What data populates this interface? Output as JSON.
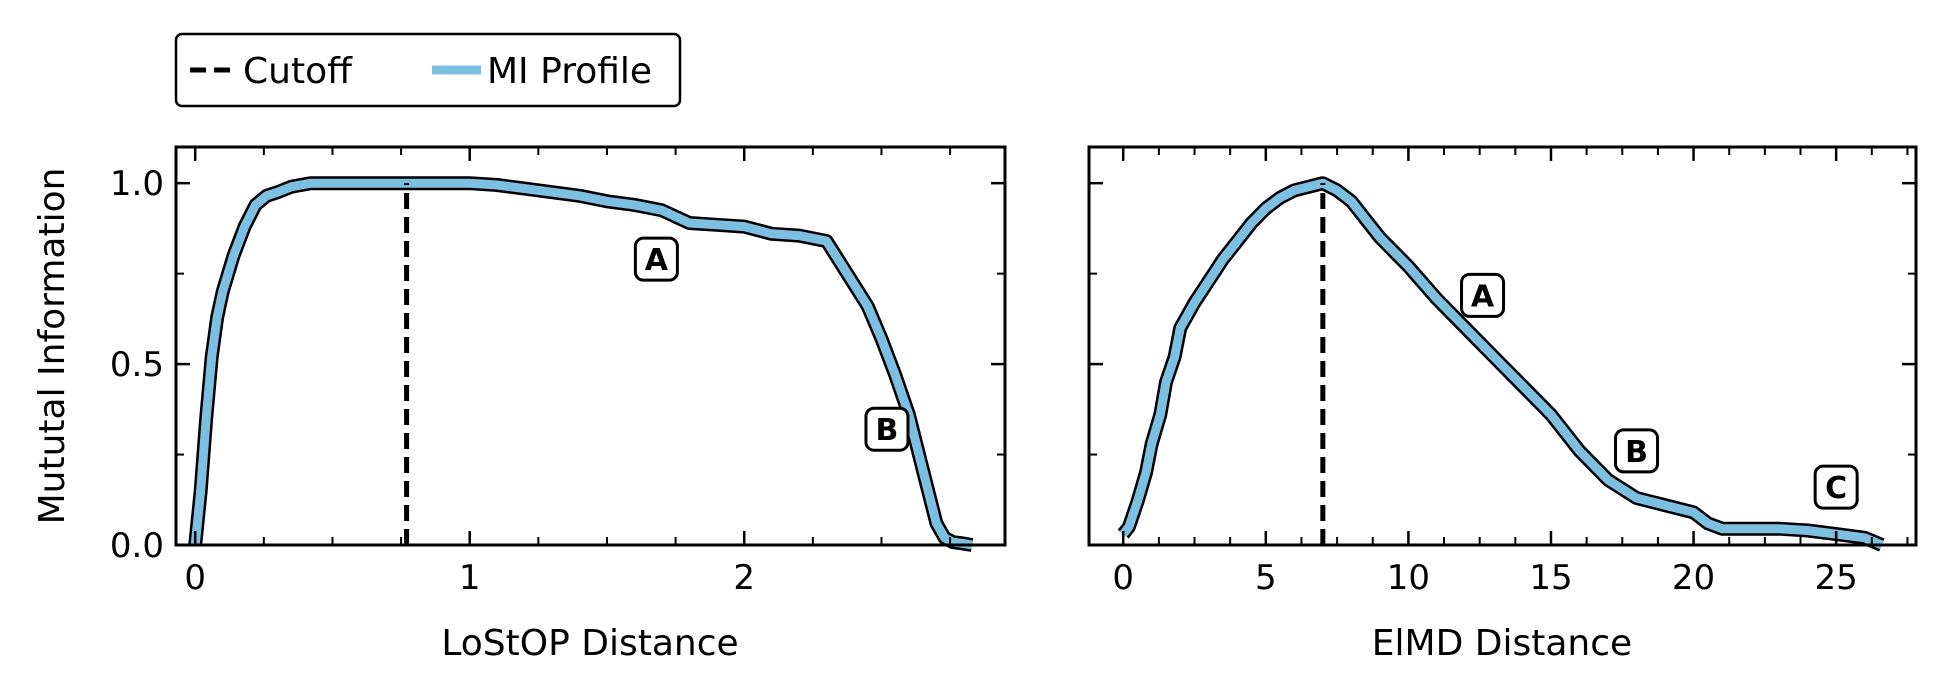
{
  "legend": {
    "entries": [
      {
        "label": "Cutoff",
        "style": "dashed",
        "color": "#000000"
      },
      {
        "label": "MI Profile",
        "style": "solid",
        "color": "#7dbfe0"
      }
    ]
  },
  "colors": {
    "profile": "#7dbfe0",
    "outline": "#000000",
    "cutoff": "#000000"
  },
  "chart_data": [
    {
      "type": "line",
      "xlabel": "LoStOP Distance",
      "ylabel": "Mututal Information",
      "xlim": [
        -0.07,
        2.95
      ],
      "ylim": [
        0,
        1.1
      ],
      "xticks": [
        0,
        1,
        2
      ],
      "yticks": [
        0.0,
        0.5,
        1.0
      ],
      "ytick_labels": [
        "0.0",
        "0.5",
        "1.0"
      ],
      "grid": false,
      "cutoff_x": 0.77,
      "series": [
        {
          "name": "MI Profile",
          "x": [
            0,
            0.02,
            0.04,
            0.06,
            0.08,
            0.1,
            0.14,
            0.18,
            0.22,
            0.26,
            0.3,
            0.35,
            0.42,
            0.5,
            0.6,
            0.7,
            0.77,
            0.9,
            1.0,
            1.1,
            1.2,
            1.3,
            1.4,
            1.5,
            1.6,
            1.7,
            1.8,
            1.9,
            2.0,
            2.1,
            2.2,
            2.3,
            2.35,
            2.4,
            2.45,
            2.5,
            2.55,
            2.6,
            2.65,
            2.7,
            2.73,
            2.76,
            2.8,
            2.83
          ],
          "y": [
            0.0,
            0.15,
            0.35,
            0.52,
            0.63,
            0.7,
            0.8,
            0.88,
            0.94,
            0.965,
            0.975,
            0.99,
            1.0,
            1.0,
            1.0,
            1.0,
            1.0,
            1.0,
            1.0,
            0.995,
            0.985,
            0.975,
            0.965,
            0.95,
            0.94,
            0.925,
            0.89,
            0.885,
            0.88,
            0.86,
            0.855,
            0.84,
            0.78,
            0.72,
            0.66,
            0.57,
            0.47,
            0.36,
            0.21,
            0.06,
            0.02,
            0.008,
            0.004,
            0.0
          ]
        }
      ],
      "annotations": [
        {
          "text": "A",
          "x": 1.68,
          "y": 0.79
        },
        {
          "text": "B",
          "x": 2.52,
          "y": 0.32
        }
      ]
    },
    {
      "type": "line",
      "xlabel": "ElMD Distance",
      "ylabel": "",
      "xlim": [
        -1.2,
        27.8
      ],
      "ylim": [
        0,
        1.1
      ],
      "xticks": [
        0,
        5,
        10,
        15,
        20,
        25
      ],
      "yticks": [
        0.0,
        0.5,
        1.0
      ],
      "ytick_labels": [
        "",
        "",
        ""
      ],
      "grid": false,
      "cutoff_x": 7.0,
      "series": [
        {
          "name": "MI Profile",
          "x": [
            0,
            0.2,
            0.5,
            0.8,
            1.0,
            1.3,
            1.5,
            1.8,
            2.0,
            2.5,
            3.0,
            3.5,
            4.0,
            4.5,
            5.0,
            5.5,
            6.0,
            6.5,
            7.0,
            7.5,
            8.0,
            8.5,
            9.0,
            10.0,
            11.0,
            12.0,
            13.0,
            14.0,
            15.0,
            16.0,
            17.0,
            18.0,
            19.0,
            20.0,
            20.5,
            21.0,
            22.0,
            23.0,
            24.0,
            25.0,
            26.0,
            26.6
          ],
          "y": [
            0.03,
            0.05,
            0.12,
            0.2,
            0.28,
            0.36,
            0.45,
            0.52,
            0.6,
            0.67,
            0.73,
            0.79,
            0.84,
            0.89,
            0.93,
            0.96,
            0.98,
            0.99,
            1.0,
            0.98,
            0.95,
            0.9,
            0.85,
            0.77,
            0.68,
            0.6,
            0.52,
            0.44,
            0.36,
            0.26,
            0.18,
            0.13,
            0.11,
            0.09,
            0.06,
            0.045,
            0.045,
            0.045,
            0.04,
            0.03,
            0.02,
            0.0
          ]
        }
      ],
      "annotations": [
        {
          "text": "A",
          "x": 12.6,
          "y": 0.69
        },
        {
          "text": "B",
          "x": 18.0,
          "y": 0.26
        },
        {
          "text": "C",
          "x": 25.0,
          "y": 0.16
        }
      ]
    }
  ]
}
